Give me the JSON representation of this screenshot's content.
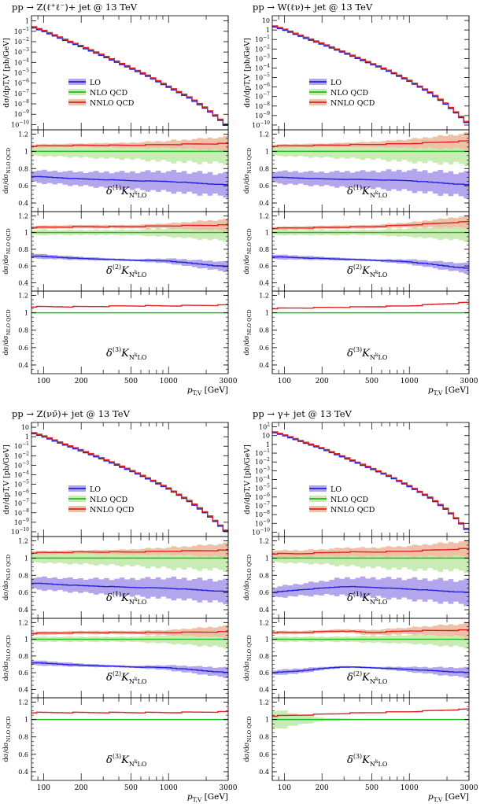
{
  "figure": {
    "x_label": "p",
    "x_label_sub": "T,V",
    "x_label_unit": "[GeV]",
    "x_ticks": [
      "100",
      "200",
      "500",
      "1000",
      "3000"
    ],
    "main_ylabel": "dσ/dp_{T,V} [pb/GeV]",
    "ratio_ylabel": "dσ/dσ_{NLO QCD}",
    "ratio_ticks": [
      "1.2",
      "1",
      "0.8",
      "0.6",
      "0.4"
    ],
    "legend": [
      "LO",
      "NLO QCD",
      "NNLO QCD"
    ],
    "delta_labels": [
      {
        "pre": "δ",
        "order": "(1)",
        "k": "K",
        "sub": "N",
        "sup": "k",
        "sub2": "LO"
      },
      {
        "pre": "δ",
        "order": "(2)",
        "k": "K",
        "sub": "N",
        "sup": "k",
        "sub2": "LO"
      },
      {
        "pre": "δ",
        "order": "(3)",
        "k": "K",
        "sub": "N",
        "sup": "k",
        "sub2": "LO"
      }
    ],
    "colors": {
      "lo": "#2222dd",
      "lo_band": "#b4a6ec",
      "nlo": "#22bb22",
      "nlo_band": "#c8ecb4",
      "nnlo": "#dd2222",
      "nnlo_band": "#eec0a8"
    }
  },
  "chart_data": [
    {
      "type": "line",
      "title": "pp → Z(ℓ⁺ℓ⁻)+ jet @ 13 TeV",
      "xlabel": "p_T,V [GeV]",
      "ylabel": "dσ/dp_T,V [pb/GeV]",
      "xlim": [
        80,
        3000
      ],
      "ylim_log10": [
        -10.5,
        0.5
      ],
      "y_ticks": [
        "1",
        "10^-1",
        "10^-2",
        "10^-3",
        "10^-4",
        "10^-5",
        "10^-6",
        "10^-7",
        "10^-8",
        "10^-9",
        "10^-10"
      ],
      "spectrum_log10": {
        "x": [
          80,
          100,
          150,
          200,
          300,
          500,
          700,
          1000,
          1500,
          2000,
          2500,
          3000
        ],
        "y": [
          -0.5,
          -0.9,
          -1.8,
          -2.4,
          -3.3,
          -4.5,
          -5.3,
          -6.3,
          -7.4,
          -8.4,
          -9.3,
          -10.2
        ]
      },
      "ratios": [
        {
          "label": "δ(1) K_NkLO",
          "lo": {
            "x": [
              80,
              200,
              500,
              1000,
              3000
            ],
            "y": [
              0.71,
              0.68,
              0.66,
              0.65,
              0.61
            ]
          },
          "lo_err": [
            0.07,
            0.08,
            0.1,
            0.12,
            0.13
          ],
          "nlo_err": [
            0.05,
            0.07,
            0.09,
            0.12,
            0.14
          ],
          "nnlo": {
            "x": [
              80,
              200,
              500,
              1000,
              3000
            ],
            "y": [
              1.06,
              1.07,
              1.07,
              1.08,
              1.09
            ]
          },
          "nnlo_err": [
            0.02,
            0.02,
            0.03,
            0.04,
            0.08
          ]
        },
        {
          "label": "δ(2) K_NkLO",
          "lo": {
            "x": [
              80,
              200,
              500,
              1000,
              3000
            ],
            "y": [
              0.72,
              0.69,
              0.67,
              0.66,
              0.59
            ]
          },
          "lo_err": [
            0.03,
            0.02,
            0.01,
            0.03,
            0.06
          ],
          "nlo_err": [
            0.03,
            0.03,
            0.03,
            0.05,
            0.1
          ],
          "nnlo": {
            "x": [
              80,
              200,
              500,
              1000,
              3000
            ],
            "y": [
              1.06,
              1.07,
              1.07,
              1.08,
              1.09
            ]
          },
          "nnlo_err": [
            0.02,
            0.02,
            0.02,
            0.03,
            0.07
          ]
        },
        {
          "label": "δ(3) K_NkLO",
          "lo": null,
          "lo_err": null,
          "nlo_err": [
            0,
            0,
            0,
            0,
            0
          ],
          "nnlo": {
            "x": [
              80,
              200,
              500,
              1000,
              3000
            ],
            "y": [
              1.07,
              1.07,
              1.08,
              1.08,
              1.09
            ]
          },
          "nnlo_err": [
            0,
            0,
            0,
            0,
            0
          ]
        }
      ]
    },
    {
      "type": "line",
      "title": "pp → W(ℓν)+ jet @ 13 TeV",
      "xlabel": "p_T,V [GeV]",
      "ylabel": "dσ/dp_T,V [pb/GeV]",
      "xlim": [
        80,
        3000
      ],
      "ylim_log10": [
        -10.5,
        1.5
      ],
      "y_ticks": [
        "10",
        "1",
        "10^-1",
        "10^-2",
        "10^-3",
        "10^-4",
        "10^-5",
        "10^-6",
        "10^-7",
        "10^-8",
        "10^-9",
        "10^-10"
      ],
      "spectrum_log10": {
        "x": [
          80,
          100,
          150,
          200,
          300,
          500,
          700,
          1000,
          1500,
          2000,
          2500,
          3000
        ],
        "y": [
          0.5,
          0.1,
          -0.8,
          -1.4,
          -2.3,
          -3.5,
          -4.3,
          -5.3,
          -6.6,
          -7.8,
          -8.9,
          -9.9
        ]
      },
      "ratios": [
        {
          "label": "δ(1) K_NkLO",
          "lo": {
            "x": [
              80,
              200,
              500,
              1000,
              3000
            ],
            "y": [
              0.7,
              0.68,
              0.67,
              0.66,
              0.61
            ]
          },
          "lo_err": [
            0.07,
            0.08,
            0.1,
            0.12,
            0.14
          ],
          "nlo_err": [
            0.05,
            0.07,
            0.09,
            0.12,
            0.15
          ],
          "nnlo": {
            "x": [
              80,
              200,
              500,
              1000,
              3000
            ],
            "y": [
              1.06,
              1.07,
              1.08,
              1.09,
              1.12
            ]
          },
          "nnlo_err": [
            0.02,
            0.02,
            0.03,
            0.05,
            0.09
          ]
        },
        {
          "label": "δ(2) K_NkLO",
          "lo": {
            "x": [
              80,
              200,
              500,
              1000,
              3000
            ],
            "y": [
              0.71,
              0.69,
              0.67,
              0.65,
              0.57
            ]
          },
          "lo_err": [
            0.03,
            0.02,
            0.01,
            0.03,
            0.06
          ],
          "nlo_err": [
            0.03,
            0.03,
            0.03,
            0.05,
            0.1
          ],
          "nnlo": {
            "x": [
              80,
              200,
              500,
              1000,
              3000
            ],
            "y": [
              1.05,
              1.06,
              1.07,
              1.09,
              1.13
            ]
          },
          "nnlo_err": [
            0.02,
            0.02,
            0.02,
            0.03,
            0.07
          ]
        },
        {
          "label": "δ(3) K_NkLO",
          "lo": null,
          "lo_err": null,
          "nlo_err": [
            0,
            0,
            0,
            0,
            0
          ],
          "nnlo": {
            "x": [
              80,
              200,
              500,
              1000,
              3000
            ],
            "y": [
              1.05,
              1.06,
              1.07,
              1.08,
              1.12
            ]
          },
          "nnlo_err": [
            0,
            0,
            0,
            0,
            0
          ]
        }
      ]
    },
    {
      "type": "line",
      "title": "pp → Z(νν̄)+ jet @ 13 TeV",
      "xlabel": "p_T,V [GeV]",
      "ylabel": "dσ/dp_T,V [pb/GeV]",
      "xlim": [
        80,
        3000
      ],
      "ylim_log10": [
        -10.5,
        1.5
      ],
      "y_ticks": [
        "10",
        "1",
        "10^-1",
        "10^-2",
        "10^-3",
        "10^-4",
        "10^-5",
        "10^-6",
        "10^-7",
        "10^-8",
        "10^-9",
        "10^-10"
      ],
      "spectrum_log10": {
        "x": [
          80,
          100,
          150,
          200,
          300,
          500,
          700,
          1000,
          1500,
          2000,
          2500,
          3000
        ],
        "y": [
          0.5,
          0.1,
          -0.8,
          -1.4,
          -2.3,
          -3.5,
          -4.4,
          -5.4,
          -6.8,
          -8.0,
          -9.1,
          -10.1
        ]
      },
      "ratios": [
        {
          "label": "δ(1) K_NkLO",
          "lo": {
            "x": [
              80,
              200,
              500,
              1000,
              3000
            ],
            "y": [
              0.71,
              0.68,
              0.66,
              0.65,
              0.61
            ]
          },
          "lo_err": [
            0.07,
            0.08,
            0.1,
            0.12,
            0.13
          ],
          "nlo_err": [
            0.05,
            0.07,
            0.09,
            0.12,
            0.14
          ],
          "nnlo": {
            "x": [
              80,
              200,
              500,
              1000,
              3000
            ],
            "y": [
              1.06,
              1.07,
              1.07,
              1.08,
              1.09
            ]
          },
          "nnlo_err": [
            0.02,
            0.02,
            0.03,
            0.04,
            0.08
          ]
        },
        {
          "label": "δ(2) K_NkLO",
          "lo": {
            "x": [
              80,
              200,
              500,
              1000,
              3000
            ],
            "y": [
              0.72,
              0.69,
              0.67,
              0.66,
              0.6
            ]
          },
          "lo_err": [
            0.03,
            0.02,
            0.01,
            0.03,
            0.06
          ],
          "nlo_err": [
            0.03,
            0.03,
            0.03,
            0.05,
            0.1
          ],
          "nnlo": {
            "x": [
              80,
              200,
              500,
              1000,
              3000
            ],
            "y": [
              1.07,
              1.08,
              1.08,
              1.08,
              1.09
            ]
          },
          "nnlo_err": [
            0.02,
            0.02,
            0.02,
            0.03,
            0.07
          ]
        },
        {
          "label": "δ(3) K_NkLO",
          "lo": null,
          "lo_err": null,
          "nlo_err": [
            0,
            0,
            0,
            0,
            0
          ],
          "nnlo": {
            "x": [
              80,
              200,
              500,
              1000,
              3000
            ],
            "y": [
              1.08,
              1.08,
              1.08,
              1.08,
              1.09
            ]
          },
          "nnlo_err": [
            0,
            0,
            0,
            0,
            0
          ]
        }
      ]
    },
    {
      "type": "line",
      "title": "pp → γ+ jet @ 13 TeV",
      "xlabel": "p_T,V [GeV]",
      "ylabel": "dσ/dp_T,V [pb/GeV]",
      "xlim": [
        80,
        3000
      ],
      "ylim_log10": [
        -10.5,
        2.5
      ],
      "y_ticks": [
        "10^2",
        "10",
        "1",
        "10^-1",
        "10^-2",
        "10^-3",
        "10^-4",
        "10^-5",
        "10^-6",
        "10^-7",
        "10^-8",
        "10^-9",
        "10^-10"
      ],
      "spectrum_log10": {
        "x": [
          80,
          100,
          150,
          200,
          300,
          500,
          700,
          1000,
          1500,
          2000,
          2500,
          3000
        ],
        "y": [
          1.5,
          1.1,
          0.2,
          -0.4,
          -1.4,
          -2.7,
          -3.6,
          -4.7,
          -6.1,
          -7.4,
          -8.7,
          -9.9
        ]
      },
      "ratios": [
        {
          "label": "δ(1) K_NkLO",
          "lo": {
            "x": [
              80,
              130,
              200,
              300,
              500,
              1000,
              3000
            ],
            "y": [
              0.6,
              0.63,
              0.65,
              0.67,
              0.66,
              0.64,
              0.6
            ]
          },
          "lo_err": [
            0.06,
            0.07,
            0.08,
            0.1,
            0.11,
            0.12,
            0.14
          ],
          "nlo_err": [
            0.05,
            0.06,
            0.07,
            0.09,
            0.11,
            0.13,
            0.15
          ],
          "nnlo": {
            "x": [
              80,
              130,
              200,
              300,
              500,
              1000,
              3000
            ],
            "y": [
              1.05,
              1.05,
              1.06,
              1.07,
              1.07,
              1.08,
              1.11
            ]
          },
          "nnlo_err": [
            0.04,
            0.04,
            0.04,
            0.05,
            0.05,
            0.06,
            0.09
          ]
        },
        {
          "label": "δ(2) K_NkLO",
          "lo": {
            "x": [
              80,
              130,
              200,
              300,
              500,
              1000,
              3000
            ],
            "y": [
              0.6,
              0.62,
              0.65,
              0.67,
              0.66,
              0.64,
              0.6
            ]
          },
          "lo_err": [
            0.03,
            0.03,
            0.02,
            0.01,
            0.01,
            0.03,
            0.06
          ],
          "nlo_err": [
            0.03,
            0.03,
            0.03,
            0.03,
            0.04,
            0.05,
            0.1
          ],
          "nnlo": {
            "x": [
              80,
              130,
              200,
              300,
              500,
              1000,
              3000
            ],
            "y": [
              1.08,
              1.08,
              1.09,
              1.1,
              1.08,
              1.1,
              1.11
            ]
          },
          "nnlo_err": [
            0.02,
            0.02,
            0.02,
            0.02,
            0.03,
            0.04,
            0.08
          ]
        },
        {
          "label": "δ(3) K_NkLO",
          "lo": null,
          "lo_err": null,
          "nlo_err": [
            0.12,
            0.06,
            0.02,
            0.01,
            0.0,
            0.0,
            0.0
          ],
          "nnlo": {
            "x": [
              80,
              130,
              200,
              300,
              500,
              1000,
              3000
            ],
            "y": [
              1.04,
              1.05,
              1.06,
              1.07,
              1.08,
              1.09,
              1.12
            ]
          },
          "nnlo_err": [
            0,
            0,
            0,
            0,
            0,
            0,
            0
          ]
        }
      ]
    }
  ]
}
